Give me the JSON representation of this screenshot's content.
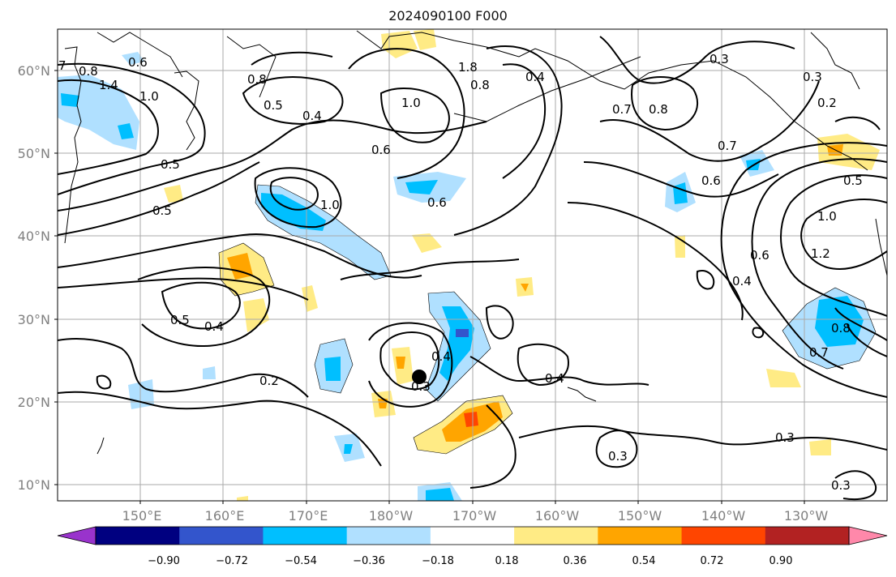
{
  "title": "2024090100 F000",
  "lat_labels": [
    "60°N",
    "50°N",
    "40°N",
    "30°N",
    "20°N",
    "10°N"
  ],
  "lon_labels": [
    "150°E",
    "160°E",
    "170°E",
    "180°W",
    "170°W",
    "160°W",
    "150°W",
    "140°W",
    "130°W"
  ],
  "colorbar": {
    "tick_labels": [
      "−0.90",
      "−0.72",
      "−0.54",
      "−0.36",
      "−0.18",
      "0.18",
      "0.36",
      "0.54",
      "0.72",
      "0.90"
    ],
    "colors": [
      "#9933cc",
      "#000080",
      "#3355cc",
      "#00bfff",
      "#b0e0ff",
      "#ffffff",
      "#ffeb85",
      "#ffa500",
      "#ff4500",
      "#b22222",
      "#ff88aa"
    ]
  },
  "contour_labels": [
    "7",
    "0.8",
    "0.6",
    "1.4",
    "1.0",
    "0.8",
    "0.5",
    "0.4",
    "1.0",
    "1.8",
    "0.8",
    "0.4",
    "0.3",
    "0.3",
    "0.2",
    "0.7",
    "0.8",
    "0.7",
    "0.6",
    "0.6",
    "0.5",
    "1.0",
    "0.6",
    "0.5",
    "0.5",
    "1.0",
    "1.2",
    "0.6",
    "0.4",
    "0.5",
    "0.4",
    "0.4",
    "0.3",
    "0.2",
    "0.4",
    "0.8",
    "0.7",
    "0.3",
    "0.3",
    "0.3"
  ],
  "marker": "black-dot"
}
